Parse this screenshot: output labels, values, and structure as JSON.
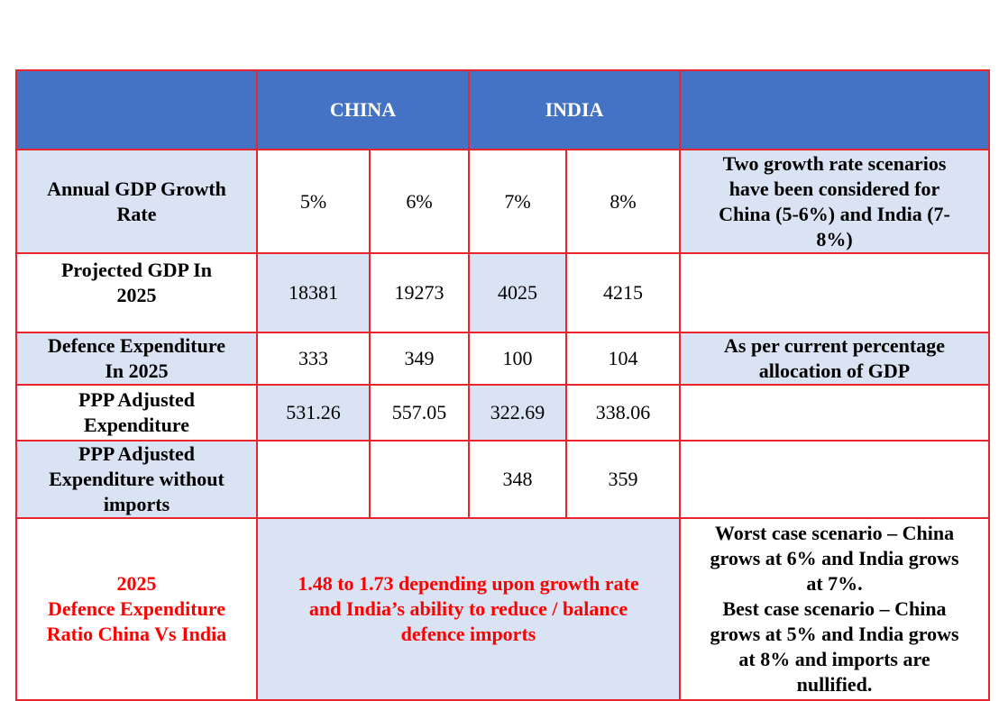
{
  "header": {
    "col1": "",
    "china": "CHINA",
    "india": "INDIA",
    "notes": ""
  },
  "rows": [
    {
      "label_lines": [
        "Annual GDP Growth",
        "Rate"
      ],
      "values": [
        "5%",
        "6%",
        "7%",
        "8%"
      ],
      "note_lines": [
        "Two growth rate scenarios",
        "have been considered for",
        "China (5-6%) and India (7-",
        "8%)"
      ]
    },
    {
      "label_lines": [
        "Projected GDP In",
        "2025"
      ],
      "values": [
        "18381",
        "19273",
        "4025",
        "4215"
      ],
      "note_lines": []
    },
    {
      "label_lines": [
        "Defence Expenditure",
        "In 2025"
      ],
      "values": [
        "333",
        "349",
        "100",
        "104"
      ],
      "note_lines": [
        "As per current percentage",
        "allocation of GDP"
      ]
    },
    {
      "label_lines": [
        "PPP Adjusted",
        "Expenditure"
      ],
      "values": [
        "531.26",
        "557.05",
        "322.69",
        "338.06"
      ],
      "note_lines": []
    },
    {
      "label_lines": [
        "PPP Adjusted",
        "Expenditure without",
        "imports"
      ],
      "values": [
        "",
        "",
        "348",
        "359"
      ],
      "note_lines": []
    }
  ],
  "ratio": {
    "label_lines": [
      "2025",
      "Defence Expenditure",
      "Ratio China Vs India"
    ],
    "value_lines": [
      "1.48 to 1.73 depending upon growth rate",
      "and India’s ability to reduce / balance",
      "defence imports"
    ],
    "note_lines": [
      "Worst case scenario – China",
      "grows at 6% and India grows",
      "at 7%.",
      "Best case scenario – China",
      "grows at 5% and India grows",
      "at 8% and imports are",
      "nullified."
    ]
  },
  "colors": {
    "header_bg": "#4472c4",
    "shade_bg": "#dae3f3",
    "border": "#e8242c",
    "highlight_text": "#ff0000"
  }
}
